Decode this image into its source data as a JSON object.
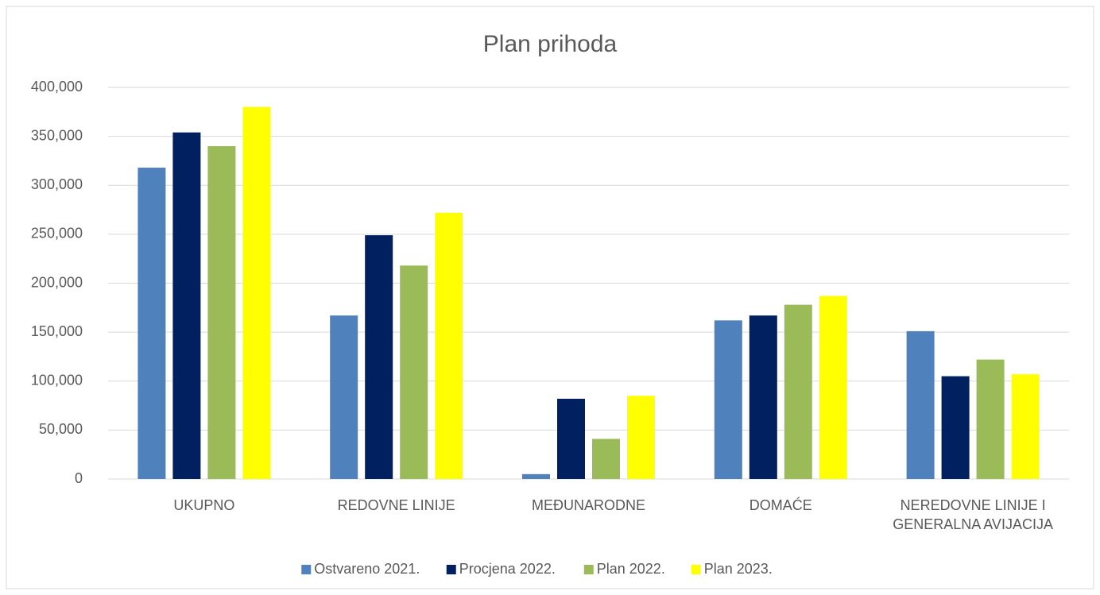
{
  "chart_data": {
    "type": "bar",
    "title": "Plan prihoda",
    "categories": [
      "UKUPNO",
      "REDOVNE LINIJE",
      "MEĐUNARODNE",
      "DOMAĆE",
      "NEREDOVNE LINIJE I GENERALNA AVIJACIJA"
    ],
    "series": [
      {
        "name": "Ostvareno 2021.",
        "color": "#4f81bd",
        "values": [
          318000,
          167000,
          5000,
          162000,
          151000
        ]
      },
      {
        "name": "Procjena 2022.",
        "color": "#002060",
        "values": [
          354000,
          249000,
          82000,
          167000,
          105000
        ]
      },
      {
        "name": "Plan 2022.",
        "color": "#9bbb59",
        "values": [
          340000,
          218000,
          41000,
          178000,
          122000
        ]
      },
      {
        "name": "Plan 2023.",
        "color": "#ffff00",
        "values": [
          380000,
          272000,
          85000,
          187000,
          107000
        ]
      }
    ],
    "ylim": [
      0,
      400000
    ],
    "yticks": [
      0,
      {
        "value": 50000,
        "label": "50,000"
      },
      {
        "value": 100000,
        "label": "100,000"
      },
      {
        "value": 150000,
        "label": "150,000"
      },
      {
        "value": 200000,
        "label": "200,000"
      },
      {
        "value": 250000,
        "label": "250,000"
      },
      {
        "value": 300000,
        "label": "300,000"
      },
      {
        "value": 350000,
        "label": "350,000"
      },
      {
        "value": 400000,
        "label": "400,000"
      }
    ],
    "grid": true,
    "legend": "bottom"
  }
}
